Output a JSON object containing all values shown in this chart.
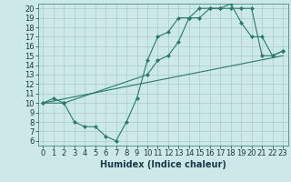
{
  "xlabel": "Humidex (Indice chaleur)",
  "bg_color": "#cce8e8",
  "grid_color": "#aacccc",
  "line_color": "#2a7a6a",
  "xlim": [
    -0.5,
    23.5
  ],
  "ylim": [
    5.5,
    20.5
  ],
  "yticks": [
    6,
    7,
    8,
    9,
    10,
    11,
    12,
    13,
    14,
    15,
    16,
    17,
    18,
    19,
    20
  ],
  "xticks": [
    0,
    1,
    2,
    3,
    4,
    5,
    6,
    7,
    8,
    9,
    10,
    11,
    12,
    13,
    14,
    15,
    16,
    17,
    18,
    19,
    20,
    21,
    22,
    23
  ],
  "line1_x": [
    0,
    1,
    2,
    3,
    4,
    5,
    6,
    7,
    8,
    9,
    10,
    11,
    12,
    13,
    14,
    15,
    16,
    17,
    18,
    19,
    20,
    21,
    22,
    23
  ],
  "line1_y": [
    10,
    10.5,
    10,
    8,
    7.5,
    7.5,
    6.5,
    6,
    8,
    10.5,
    14.5,
    17,
    17.5,
    19,
    19,
    20,
    20,
    20,
    20,
    20,
    20,
    15,
    15,
    15.5
  ],
  "line2_x": [
    0,
    2,
    10,
    11,
    12,
    13,
    14,
    15,
    16,
    17,
    18,
    19,
    20,
    21,
    22,
    23
  ],
  "line2_y": [
    10,
    10,
    13,
    14.5,
    15,
    16.5,
    19,
    19,
    20,
    20,
    20.5,
    18.5,
    17,
    17,
    15,
    15.5
  ],
  "line3_x": [
    0,
    23
  ],
  "line3_y": [
    10,
    15
  ],
  "marker_size": 2.5,
  "font_size": 6
}
